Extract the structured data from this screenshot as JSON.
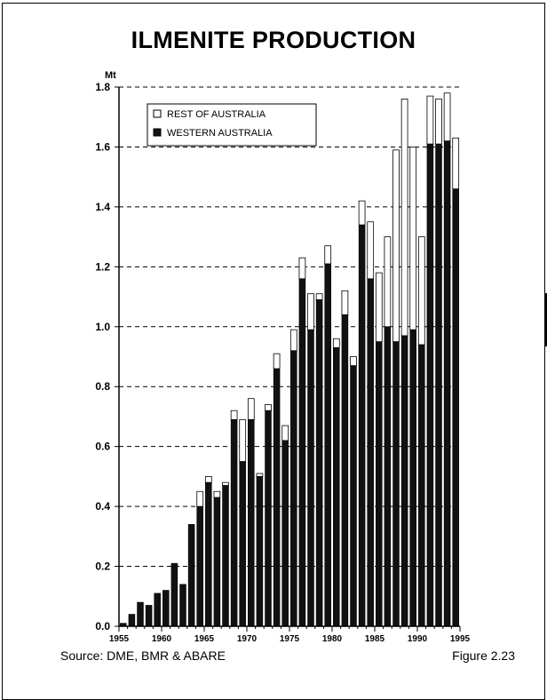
{
  "title": "ILMENITE PRODUCTION",
  "source": "Source: DME, BMR & ABARE",
  "figure_label": "Figure 2.23",
  "colors": {
    "western": "#111111",
    "rest": "#ffffff",
    "outline": "#000000",
    "grid": "#000000"
  },
  "chart_data": {
    "type": "bar",
    "stacked": true,
    "title": "ILMENITE PRODUCTION",
    "ylabel": "Mt",
    "xlabel": "",
    "ylim": [
      0,
      1.8
    ],
    "xlim": [
      1955,
      1995
    ],
    "grid": "dashed horizontal",
    "legend_position": "top-left",
    "yticks": [
      "0.0",
      "0.2",
      "0.4",
      "0.6",
      "0.8",
      "1.0",
      "1.2",
      "1.4",
      "1.6",
      "1.8"
    ],
    "ytick_values": [
      0,
      0.2,
      0.4,
      0.6,
      0.8,
      1.0,
      1.2,
      1.4,
      1.6,
      1.8
    ],
    "xticks": [
      "1955",
      "1960",
      "1965",
      "1970",
      "1975",
      "1980",
      "1985",
      "1990",
      "1995"
    ],
    "xtick_values": [
      1955,
      1960,
      1965,
      1970,
      1975,
      1980,
      1985,
      1990,
      1995
    ],
    "x": [
      1956,
      1957,
      1958,
      1959,
      1960,
      1961,
      1962,
      1963,
      1964,
      1965,
      1966,
      1967,
      1968,
      1969,
      1970,
      1971,
      1972,
      1973,
      1974,
      1975,
      1976,
      1977,
      1978,
      1979,
      1980,
      1981,
      1982,
      1983,
      1984,
      1985,
      1986,
      1987,
      1988,
      1989,
      1990,
      1991,
      1992,
      1993,
      1994,
      1995
    ],
    "series": [
      {
        "name": "WESTERN AUSTRALIA",
        "values": [
          0.01,
          0.04,
          0.08,
          0.07,
          0.11,
          0.12,
          0.21,
          0.14,
          0.34,
          0.4,
          0.48,
          0.43,
          0.47,
          0.69,
          0.55,
          0.69,
          0.5,
          0.72,
          0.86,
          0.62,
          0.92,
          1.16,
          0.99,
          1.09,
          1.21,
          0.93,
          1.04,
          0.87,
          1.34,
          1.16,
          0.95,
          1.0,
          0.95,
          0.97,
          0.99,
          0.94,
          1.61,
          1.61,
          1.62,
          1.46
        ]
      },
      {
        "name": "REST OF AUSTRALIA",
        "values": [
          0.0,
          0.0,
          0.0,
          0.0,
          0.0,
          0.0,
          0.0,
          0.0,
          0.0,
          0.05,
          0.02,
          0.02,
          0.01,
          0.03,
          0.14,
          0.07,
          0.01,
          0.02,
          0.05,
          0.05,
          0.07,
          0.07,
          0.12,
          0.02,
          0.06,
          0.03,
          0.08,
          0.03,
          0.08,
          0.19,
          0.23,
          0.3,
          0.64,
          0.79,
          0.61,
          0.36,
          0.16,
          0.15,
          0.16,
          0.17
        ]
      }
    ]
  }
}
